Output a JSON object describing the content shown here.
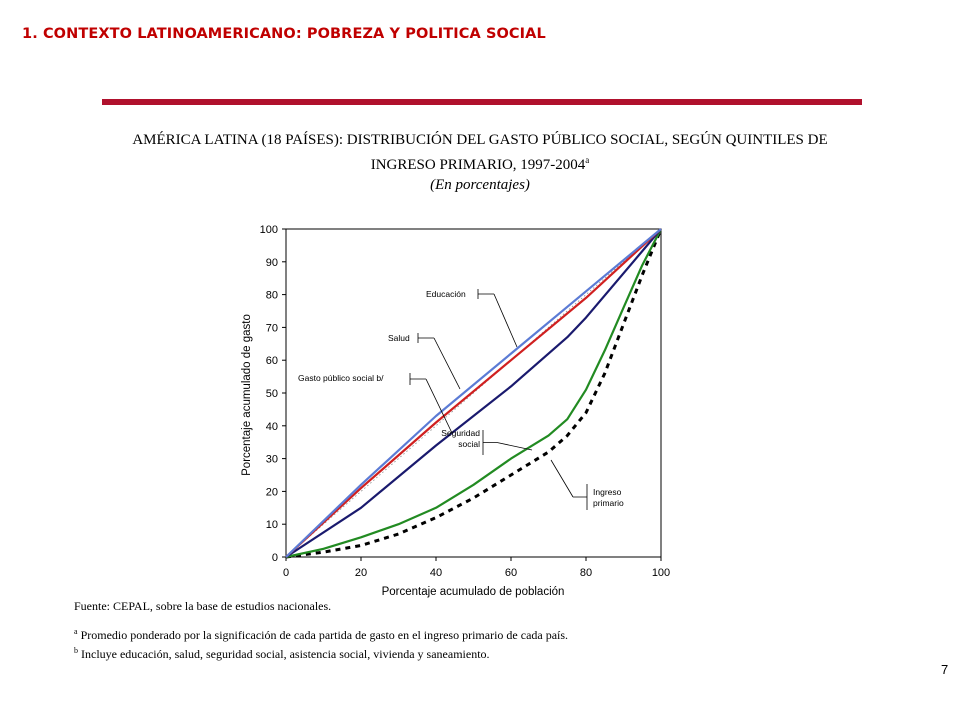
{
  "section_title": "1. CONTEXTO LATINOAMERICANO: POBREZA Y POLITICA SOCIAL",
  "chart_title": {
    "line1": "AMÉRICA LATINA (18 PAÍSES): DISTRIBUCIÓN DEL GASTO PÚBLICO SOCIAL, SEGÚN QUINTILES DE",
    "line2": "INGRESO PRIMARIO, 1997-2004",
    "line2_sup": "a",
    "subtitle": "(En porcentajes)"
  },
  "chart_data": {
    "type": "line",
    "xlabel": "Porcentaje acumulado de población",
    "ylabel": "Porcentaje acumulado de gasto",
    "xlim": [
      0,
      100
    ],
    "ylim": [
      0,
      100
    ],
    "x_ticks": [
      0,
      20,
      40,
      60,
      80,
      100
    ],
    "y_ticks": [
      0,
      10,
      20,
      30,
      40,
      50,
      60,
      70,
      80,
      90,
      100
    ],
    "x_tick_labels": [
      "0",
      "20",
      "40",
      "60",
      "80",
      "100"
    ],
    "y_tick_labels": [
      "0",
      "10",
      "20",
      "30",
      "40",
      "50",
      "60",
      "70",
      "80",
      "90",
      "100"
    ],
    "grid": false,
    "equality_line": true,
    "series": [
      {
        "name": "Educación",
        "color": "#5b7bd5",
        "style": "solid",
        "x": [
          0,
          20,
          40,
          60,
          80,
          100
        ],
        "y": [
          0,
          22,
          43,
          62,
          81,
          100
        ]
      },
      {
        "name": "Salud",
        "color": "#d02020",
        "style": "solid",
        "x": [
          0,
          20,
          40,
          60,
          80,
          100
        ],
        "y": [
          0,
          21,
          41,
          60,
          79,
          100
        ]
      },
      {
        "name": "Gasto público social b/",
        "color": "#1a1a6e",
        "style": "solid",
        "x": [
          0,
          20,
          40,
          60,
          75,
          80,
          100
        ],
        "y": [
          0,
          15,
          34,
          52,
          67,
          73,
          100
        ]
      },
      {
        "name": "Seguridad social",
        "color": "#228b22",
        "style": "solid",
        "x": [
          0,
          10,
          20,
          30,
          40,
          50,
          60,
          70,
          75,
          80,
          85,
          90,
          95,
          100
        ],
        "y": [
          0,
          2.5,
          6,
          10,
          15,
          22,
          30,
          37,
          42,
          51,
          63,
          76,
          89,
          100
        ]
      },
      {
        "name": "Ingreso primario",
        "color": "#000000",
        "style": "dashed",
        "x": [
          0,
          10,
          20,
          30,
          40,
          50,
          60,
          70,
          75,
          80,
          85,
          90,
          95,
          100
        ],
        "y": [
          0,
          1.5,
          3.5,
          7,
          12,
          18,
          25,
          32,
          37,
          44,
          56,
          71,
          86,
          100
        ]
      }
    ],
    "annotations": [
      {
        "label": "Educación",
        "series": "Educación"
      },
      {
        "label": "Salud",
        "series": "Salud"
      },
      {
        "label": "Gasto público social b/",
        "series": "Gasto público social b/"
      },
      {
        "label": "Seguridad social",
        "series": "Seguridad social"
      },
      {
        "label": "Ingreso primario",
        "series": "Ingreso primario"
      }
    ]
  },
  "notes": {
    "source": "Fuente: CEPAL, sobre la base de estudios nacionales.",
    "note_a_marker": "a",
    "note_a": " Promedio ponderado por la significación de cada partida de gasto en el ingreso primario de cada país.",
    "note_b_marker": "b",
    "note_b": " Incluye educación, salud, seguridad social, asistencia social, vivienda y saneamiento."
  },
  "page_number": "7"
}
